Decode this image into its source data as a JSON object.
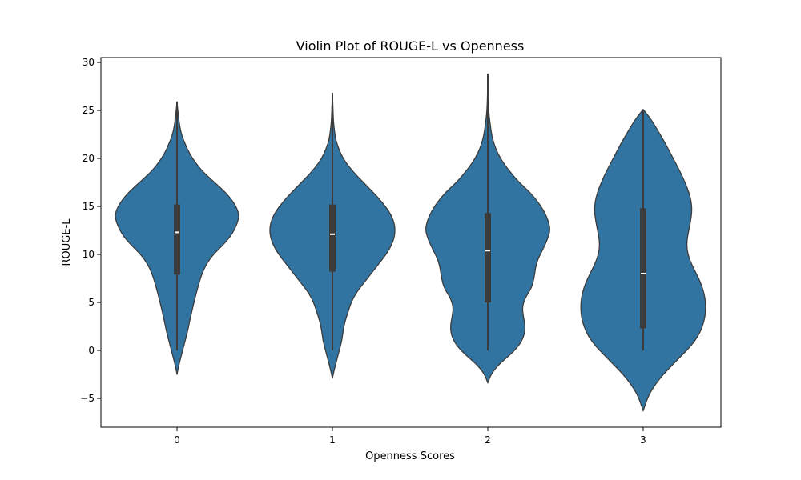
{
  "chart_data": {
    "type": "violin",
    "title": "Violin Plot of ROUGE-L vs Openness",
    "xlabel": "Openness Scores",
    "ylabel": "ROUGE-L",
    "categories": [
      "0",
      "1",
      "2",
      "3"
    ],
    "ylim": [
      -8,
      30.5
    ],
    "yticks": [
      -5,
      0,
      5,
      10,
      15,
      20,
      25,
      30
    ],
    "ytick_labels": [
      "−5",
      "0",
      "5",
      "10",
      "15",
      "20",
      "25",
      "30"
    ],
    "fill_color": "#3274a1",
    "outline_color": "#3b3b3b",
    "box_color": "#3b3b3b",
    "median_color": "#ffffff",
    "grid": false,
    "violins": [
      {
        "category": "0",
        "min": 0,
        "q1": 7.9,
        "median": 12.3,
        "q3": 15.2,
        "max": 25.9,
        "profile": [
          [
            -2.5,
            0
          ],
          [
            -1.8,
            0.02
          ],
          [
            -1,
            0.05
          ],
          [
            0,
            0.09
          ],
          [
            1,
            0.13
          ],
          [
            2,
            0.17
          ],
          [
            3,
            0.2
          ],
          [
            5,
            0.27
          ],
          [
            7,
            0.35
          ],
          [
            8,
            0.4
          ],
          [
            9,
            0.47
          ],
          [
            10,
            0.58
          ],
          [
            11,
            0.74
          ],
          [
            12,
            0.87
          ],
          [
            13,
            0.95
          ],
          [
            13.8,
            0.99
          ],
          [
            14.5,
            0.98
          ],
          [
            15.5,
            0.9
          ],
          [
            16.5,
            0.77
          ],
          [
            17.5,
            0.6
          ],
          [
            18.5,
            0.43
          ],
          [
            19.5,
            0.3
          ],
          [
            20.5,
            0.2
          ],
          [
            21.5,
            0.13
          ],
          [
            22.5,
            0.07
          ],
          [
            23.5,
            0.04
          ],
          [
            24.5,
            0.02
          ],
          [
            25.9,
            0
          ]
        ]
      },
      {
        "category": "1",
        "min": 0,
        "q1": 8.2,
        "median": 12.1,
        "q3": 15.2,
        "max": 26.8,
        "profile": [
          [
            -2.9,
            0
          ],
          [
            -2,
            0.03
          ],
          [
            -1,
            0.07
          ],
          [
            0,
            0.11
          ],
          [
            1,
            0.15
          ],
          [
            2,
            0.17
          ],
          [
            3,
            0.2
          ],
          [
            4,
            0.25
          ],
          [
            5,
            0.3
          ],
          [
            6,
            0.38
          ],
          [
            7,
            0.5
          ],
          [
            8,
            0.62
          ],
          [
            9,
            0.74
          ],
          [
            10,
            0.86
          ],
          [
            11,
            0.95
          ],
          [
            12,
            1.0
          ],
          [
            13,
            1.0
          ],
          [
            14,
            0.95
          ],
          [
            15,
            0.85
          ],
          [
            16,
            0.72
          ],
          [
            17,
            0.57
          ],
          [
            18,
            0.42
          ],
          [
            19,
            0.28
          ],
          [
            20,
            0.17
          ],
          [
            21,
            0.1
          ],
          [
            22,
            0.05
          ],
          [
            23,
            0.03
          ],
          [
            24,
            0.015
          ],
          [
            25,
            0.01
          ],
          [
            26.8,
            0
          ]
        ]
      },
      {
        "category": "2",
        "min": 0,
        "q1": 5.0,
        "median": 10.4,
        "q3": 14.3,
        "max": 28.8,
        "profile": [
          [
            -3.4,
            0
          ],
          [
            -2.5,
            0.05
          ],
          [
            -1.5,
            0.17
          ],
          [
            -0.5,
            0.35
          ],
          [
            0.5,
            0.5
          ],
          [
            1.5,
            0.58
          ],
          [
            2.5,
            0.6
          ],
          [
            3.5,
            0.57
          ],
          [
            4.5,
            0.55
          ],
          [
            5.5,
            0.6
          ],
          [
            6.5,
            0.7
          ],
          [
            7.5,
            0.74
          ],
          [
            8.5,
            0.76
          ],
          [
            9.5,
            0.8
          ],
          [
            10.5,
            0.88
          ],
          [
            11.5,
            0.95
          ],
          [
            12.5,
            1.0
          ],
          [
            13.5,
            0.97
          ],
          [
            14.5,
            0.9
          ],
          [
            15.5,
            0.8
          ],
          [
            16.5,
            0.67
          ],
          [
            17.5,
            0.5
          ],
          [
            18.5,
            0.37
          ],
          [
            19.5,
            0.25
          ],
          [
            20.5,
            0.16
          ],
          [
            21.5,
            0.1
          ],
          [
            22.5,
            0.06
          ],
          [
            23.5,
            0.04
          ],
          [
            24.5,
            0.02
          ],
          [
            25.5,
            0.01
          ],
          [
            26.5,
            0.005
          ],
          [
            28.8,
            0
          ]
        ]
      },
      {
        "category": "3",
        "min": 0,
        "q1": 2.3,
        "median": 8.0,
        "q3": 14.8,
        "max": 25.1,
        "profile": [
          [
            -6.3,
            0
          ],
          [
            -5.5,
            0.04
          ],
          [
            -4.5,
            0.1
          ],
          [
            -3.5,
            0.2
          ],
          [
            -2.5,
            0.32
          ],
          [
            -1.5,
            0.47
          ],
          [
            -0.5,
            0.62
          ],
          [
            0.5,
            0.77
          ],
          [
            1.5,
            0.88
          ],
          [
            2.5,
            0.95
          ],
          [
            3.5,
            0.99
          ],
          [
            4.5,
            1.0
          ],
          [
            5.5,
            0.99
          ],
          [
            6.5,
            0.95
          ],
          [
            7.5,
            0.89
          ],
          [
            8.5,
            0.81
          ],
          [
            9.5,
            0.74
          ],
          [
            10.5,
            0.7
          ],
          [
            11.5,
            0.7
          ],
          [
            12.5,
            0.73
          ],
          [
            13.5,
            0.76
          ],
          [
            14.5,
            0.78
          ],
          [
            15.5,
            0.77
          ],
          [
            16.5,
            0.73
          ],
          [
            17.5,
            0.67
          ],
          [
            18.5,
            0.6
          ],
          [
            19.5,
            0.52
          ],
          [
            20.5,
            0.44
          ],
          [
            21.5,
            0.36
          ],
          [
            22.5,
            0.27
          ],
          [
            23.5,
            0.18
          ],
          [
            24.3,
            0.1
          ],
          [
            25.1,
            0
          ]
        ]
      }
    ]
  }
}
